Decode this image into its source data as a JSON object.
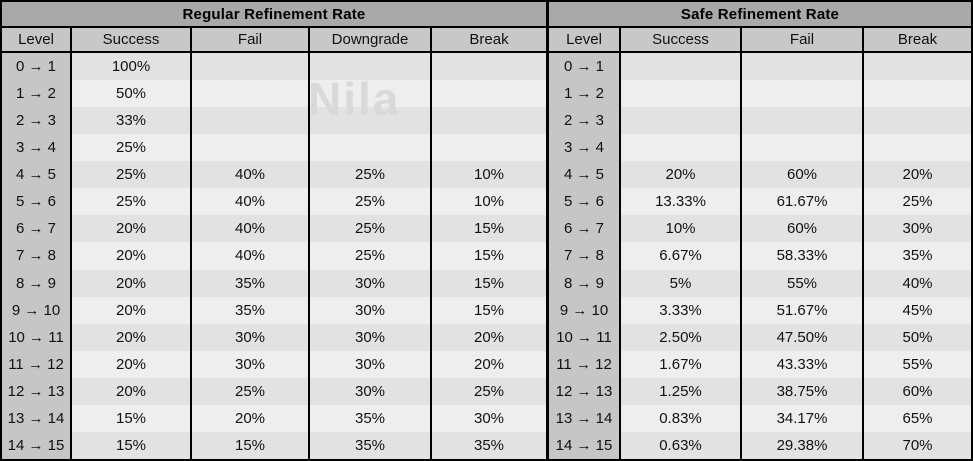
{
  "watermark": "Nila",
  "colors": {
    "title_bg": "#a9a9a9",
    "header_bg": "#c8c8c8",
    "level_column_bg": "#c6c6c6",
    "row_even_bg": "#e2e2e2",
    "row_odd_bg": "#eeeeee",
    "border": "#000000",
    "text": "#111111",
    "watermark_color": "#d9d9d9"
  },
  "chart_data": [
    {
      "type": "table",
      "title": "Regular Refinement Rate",
      "columns": [
        "Level",
        "Success",
        "Fail",
        "Downgrade",
        "Break"
      ],
      "rows": [
        [
          "0 → 1",
          "100%",
          "",
          "",
          ""
        ],
        [
          "1 → 2",
          "50%",
          "",
          "",
          ""
        ],
        [
          "2 → 3",
          "33%",
          "",
          "",
          ""
        ],
        [
          "3 → 4",
          "25%",
          "",
          "",
          ""
        ],
        [
          "4 → 5",
          "25%",
          "40%",
          "25%",
          "10%"
        ],
        [
          "5 → 6",
          "25%",
          "40%",
          "25%",
          "10%"
        ],
        [
          "6 → 7",
          "20%",
          "40%",
          "25%",
          "15%"
        ],
        [
          "7 → 8",
          "20%",
          "40%",
          "25%",
          "15%"
        ],
        [
          "8 → 9",
          "20%",
          "35%",
          "30%",
          "15%"
        ],
        [
          "9 → 10",
          "20%",
          "35%",
          "30%",
          "15%"
        ],
        [
          "10 → 11",
          "20%",
          "30%",
          "30%",
          "20%"
        ],
        [
          "11 → 12",
          "20%",
          "30%",
          "30%",
          "20%"
        ],
        [
          "12 → 13",
          "20%",
          "25%",
          "30%",
          "25%"
        ],
        [
          "13 → 14",
          "15%",
          "20%",
          "35%",
          "30%"
        ],
        [
          "14 → 15",
          "15%",
          "15%",
          "35%",
          "35%"
        ]
      ]
    },
    {
      "type": "table",
      "title": "Safe Refinement Rate",
      "columns": [
        "Level",
        "Success",
        "Fail",
        "Break"
      ],
      "rows": [
        [
          "0 → 1",
          "",
          "",
          ""
        ],
        [
          "1 → 2",
          "",
          "",
          ""
        ],
        [
          "2 → 3",
          "",
          "",
          ""
        ],
        [
          "3 → 4",
          "",
          "",
          ""
        ],
        [
          "4 → 5",
          "20%",
          "60%",
          "20%"
        ],
        [
          "5 → 6",
          "13.33%",
          "61.67%",
          "25%"
        ],
        [
          "6 → 7",
          "10%",
          "60%",
          "30%"
        ],
        [
          "7 → 8",
          "6.67%",
          "58.33%",
          "35%"
        ],
        [
          "8 → 9",
          "5%",
          "55%",
          "40%"
        ],
        [
          "9 → 10",
          "3.33%",
          "51.67%",
          "45%"
        ],
        [
          "10 → 11",
          "2.50%",
          "47.50%",
          "50%"
        ],
        [
          "11 → 12",
          "1.67%",
          "43.33%",
          "55%"
        ],
        [
          "12 → 13",
          "1.25%",
          "38.75%",
          "60%"
        ],
        [
          "13 → 14",
          "0.83%",
          "34.17%",
          "65%"
        ],
        [
          "14 → 15",
          "0.63%",
          "29.38%",
          "70%"
        ]
      ]
    }
  ]
}
